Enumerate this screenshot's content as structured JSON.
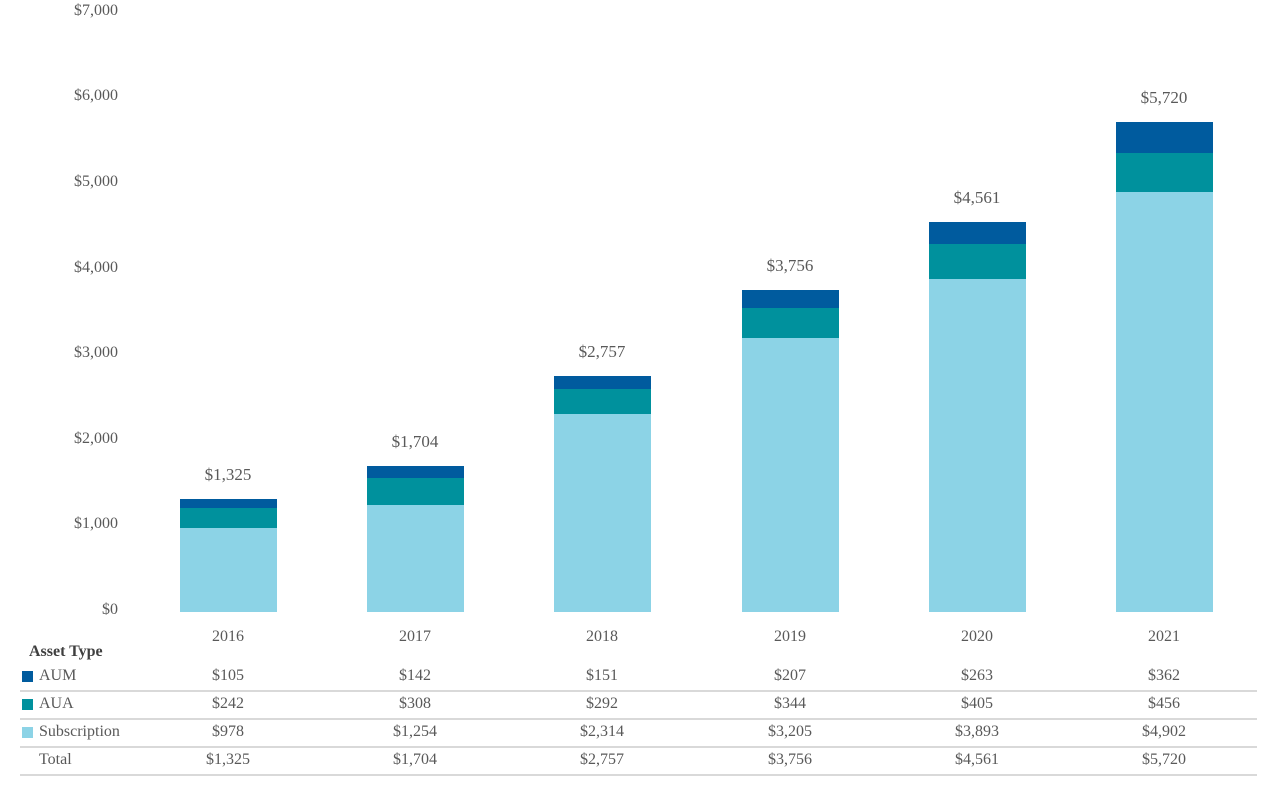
{
  "chart_data": {
    "type": "bar",
    "stacked": true,
    "title": "",
    "categories": [
      "2016",
      "2017",
      "2018",
      "2019",
      "2020",
      "2021"
    ],
    "series": [
      {
        "name": "AUM",
        "color": "#005b9e",
        "values": [
          105,
          142,
          151,
          207,
          263,
          362
        ]
      },
      {
        "name": "AUA",
        "color": "#00919d",
        "values": [
          242,
          308,
          292,
          344,
          405,
          456
        ]
      },
      {
        "name": "Subscription",
        "color": "#8cd3e6",
        "values": [
          978,
          1254,
          2314,
          3205,
          3893,
          4902
        ]
      }
    ],
    "totals": [
      1325,
      1704,
      2757,
      3756,
      4561,
      5720
    ],
    "total_labels": [
      "$1,325",
      "$1,704",
      "$2,757",
      "$3,756",
      "$4,561",
      "$5,720"
    ],
    "ylim": [
      0,
      7000
    ],
    "ytick_step": 1000,
    "ytick_labels": [
      "$0",
      "$1,000",
      "$2,000",
      "$3,000",
      "$4,000",
      "$5,000",
      "$6,000",
      "$7,000"
    ],
    "grid": false,
    "legend_position": "table-left-column"
  },
  "table": {
    "header_label": "Asset Type",
    "year_columns": [
      "2016",
      "2017",
      "2018",
      "2019",
      "2020",
      "2021"
    ],
    "rows": [
      {
        "label": "AUM",
        "swatch_color": "#005b9e",
        "values": [
          "$105",
          "$142",
          "$151",
          "$207",
          "$263",
          "$362"
        ]
      },
      {
        "label": "AUA",
        "swatch_color": "#00919d",
        "values": [
          "$242",
          "$308",
          "$292",
          "$344",
          "$405",
          "$456"
        ]
      },
      {
        "label": "Subscription",
        "swatch_color": "#8cd3e6",
        "values": [
          "$978",
          "$1,254",
          "$2,314",
          "$3,205",
          "$3,893",
          "$4,902"
        ]
      },
      {
        "label": "Total",
        "swatch_color": null,
        "values": [
          "$1,325",
          "$1,704",
          "$2,757",
          "$3,756",
          "$4,561",
          "$5,720"
        ]
      }
    ]
  },
  "colors": {
    "aum": "#005b9e",
    "aua": "#00919d",
    "subscription": "#8cd3e6",
    "text": "#595959",
    "header_text": "#3f3f3f",
    "separator": "#d9d9d9",
    "background": "#ffffff"
  }
}
